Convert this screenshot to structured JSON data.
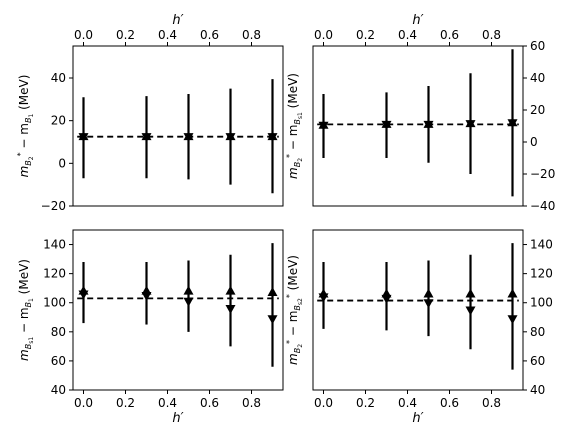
{
  "chart_data": [
    {
      "type": "scatter",
      "title": "",
      "xlabel": "h′",
      "xlabel_position": "top",
      "ylabel": "m_{B2*} − m_{B1} (MeV)",
      "ylabel_parts": {
        "main": "m",
        "sub1": "B",
        "subsub1": "2",
        "star": "*",
        "mid": " − m",
        "sub2": "B",
        "subsub2": "1",
        "unit": " (MeV)"
      },
      "ytick_side": "left",
      "xlim": [
        -0.05,
        0.95
      ],
      "ylim": [
        -20,
        55
      ],
      "xticks": [
        "0.0",
        "0.2",
        "0.4",
        "0.6",
        "0.8"
      ],
      "yticks": [
        "−20",
        "0",
        "20",
        "40"
      ],
      "ytick_values": [
        -20,
        0,
        20,
        40
      ],
      "fit_line_value": 12.5,
      "series": [
        {
          "marker": "triangle-up",
          "x": [
            0.0,
            0.3,
            0.5,
            0.7,
            0.9
          ],
          "y": [
            12.5,
            12.5,
            12.5,
            12.5,
            12.5
          ],
          "yerr_low": [
            -7,
            -7,
            -7.5,
            -10,
            -14
          ],
          "yerr_high": [
            31,
            31.5,
            32.5,
            35,
            39.5
          ]
        },
        {
          "marker": "triangle-down",
          "x": [
            0.0,
            0.3,
            0.5,
            0.7,
            0.9
          ],
          "y": [
            12.5,
            12.5,
            12.5,
            12.5,
            12.5
          ],
          "yerr_low": [
            -7,
            -7,
            -7.5,
            -10,
            -14
          ],
          "yerr_high": [
            31,
            31.5,
            32.5,
            35,
            39.5
          ]
        }
      ]
    },
    {
      "type": "scatter",
      "title": "",
      "xlabel": "h′",
      "xlabel_position": "top",
      "ylabel": "m_{B2*} − m_{Bs1} (MeV)",
      "ylabel_parts": {
        "main": "m",
        "sub1": "B",
        "subsub1": "2",
        "star": "*",
        "mid": " − m",
        "sub2": "B",
        "subsub2": "s1",
        "unit": " (MeV)"
      },
      "ytick_side": "right",
      "xlim": [
        -0.05,
        0.95
      ],
      "ylim": [
        -40,
        60
      ],
      "xticks": [
        "0.0",
        "0.2",
        "0.4",
        "0.6",
        "0.8"
      ],
      "yticks": [
        "−40",
        "−20",
        "0",
        "20",
        "40",
        "60"
      ],
      "ytick_values": [
        -40,
        -20,
        0,
        20,
        40,
        60
      ],
      "fit_line_value": 11,
      "series": [
        {
          "marker": "triangle-up",
          "x": [
            0.0,
            0.3,
            0.5,
            0.7,
            0.9
          ],
          "y": [
            10.5,
            11,
            11,
            11.5,
            12
          ],
          "yerr_low": [
            -10,
            -10,
            -13,
            -20,
            -34
          ],
          "yerr_high": [
            30,
            31,
            35,
            43,
            58
          ]
        },
        {
          "marker": "triangle-down",
          "x": [
            0.0,
            0.3,
            0.5,
            0.7,
            0.9
          ],
          "y": [
            10.5,
            11,
            11,
            11.5,
            12
          ],
          "yerr_low": [
            -10,
            -10,
            -13,
            -20,
            -34
          ],
          "yerr_high": [
            30,
            31,
            35,
            43,
            58
          ]
        }
      ]
    },
    {
      "type": "scatter",
      "title": "",
      "xlabel": "h′",
      "xlabel_position": "bottom",
      "ylabel": "m_{Bs1} − m_{B1} (MeV)",
      "ylabel_parts": {
        "main": "m",
        "sub1": "B",
        "subsub1": "s1",
        "star": "",
        "mid": " − m",
        "sub2": "B",
        "subsub2": "1",
        "unit": " (MeV)"
      },
      "ytick_side": "left",
      "xlim": [
        -0.05,
        0.95
      ],
      "ylim": [
        40,
        150
      ],
      "xticks": [
        "0.0",
        "0.2",
        "0.4",
        "0.6",
        "0.8"
      ],
      "yticks": [
        "40",
        "60",
        "80",
        "100",
        "120",
        "140"
      ],
      "ytick_values": [
        40,
        60,
        80,
        100,
        120,
        140
      ],
      "fit_line_value": 103,
      "series": [
        {
          "marker": "triangle-up",
          "x": [
            0.0,
            0.3,
            0.5,
            0.7,
            0.9
          ],
          "y": [
            108,
            108,
            108,
            108,
            107
          ],
          "yerr_low": [
            86,
            85,
            80,
            70,
            56
          ],
          "yerr_high": [
            128,
            128,
            129,
            133,
            141
          ]
        },
        {
          "marker": "triangle-down",
          "x": [
            0.0,
            0.3,
            0.5,
            0.7,
            0.9
          ],
          "y": [
            106,
            105,
            101,
            96,
            89
          ],
          "yerr_low": [
            86,
            85,
            80,
            70,
            56
          ],
          "yerr_high": [
            128,
            128,
            129,
            133,
            141
          ]
        }
      ]
    },
    {
      "type": "scatter",
      "title": "",
      "xlabel": "h′",
      "xlabel_position": "bottom",
      "ylabel": "m_{B2*} − m_{Bs2*} (MeV)",
      "ylabel_parts": {
        "main": "m",
        "sub1": "B",
        "subsub1": "2",
        "star": "*",
        "mid": " − m",
        "sub2": "B",
        "subsub2": "s2",
        "star2": "*",
        "unit": " (MeV)"
      },
      "ytick_side": "right",
      "xlim": [
        -0.05,
        0.95
      ],
      "ylim": [
        40,
        150
      ],
      "xticks": [
        "0.0",
        "0.2",
        "0.4",
        "0.6",
        "0.8"
      ],
      "yticks": [
        "40",
        "60",
        "80",
        "100",
        "120",
        "140"
      ],
      "ytick_values": [
        40,
        60,
        80,
        100,
        120,
        140
      ],
      "fit_line_value": 101.5,
      "series": [
        {
          "marker": "triangle-up",
          "x": [
            0.0,
            0.3,
            0.5,
            0.7,
            0.9
          ],
          "y": [
            106,
            106,
            106,
            106,
            106
          ],
          "yerr_low": [
            82,
            81,
            77,
            68,
            54
          ],
          "yerr_high": [
            128,
            128,
            129,
            133,
            141
          ]
        },
        {
          "marker": "triangle-down",
          "x": [
            0.0,
            0.3,
            0.5,
            0.7,
            0.9
          ],
          "y": [
            104,
            103,
            100,
            95,
            89
          ],
          "yerr_low": [
            82,
            81,
            77,
            68,
            54
          ],
          "yerr_high": [
            128,
            128,
            129,
            133,
            141
          ]
        }
      ]
    }
  ]
}
